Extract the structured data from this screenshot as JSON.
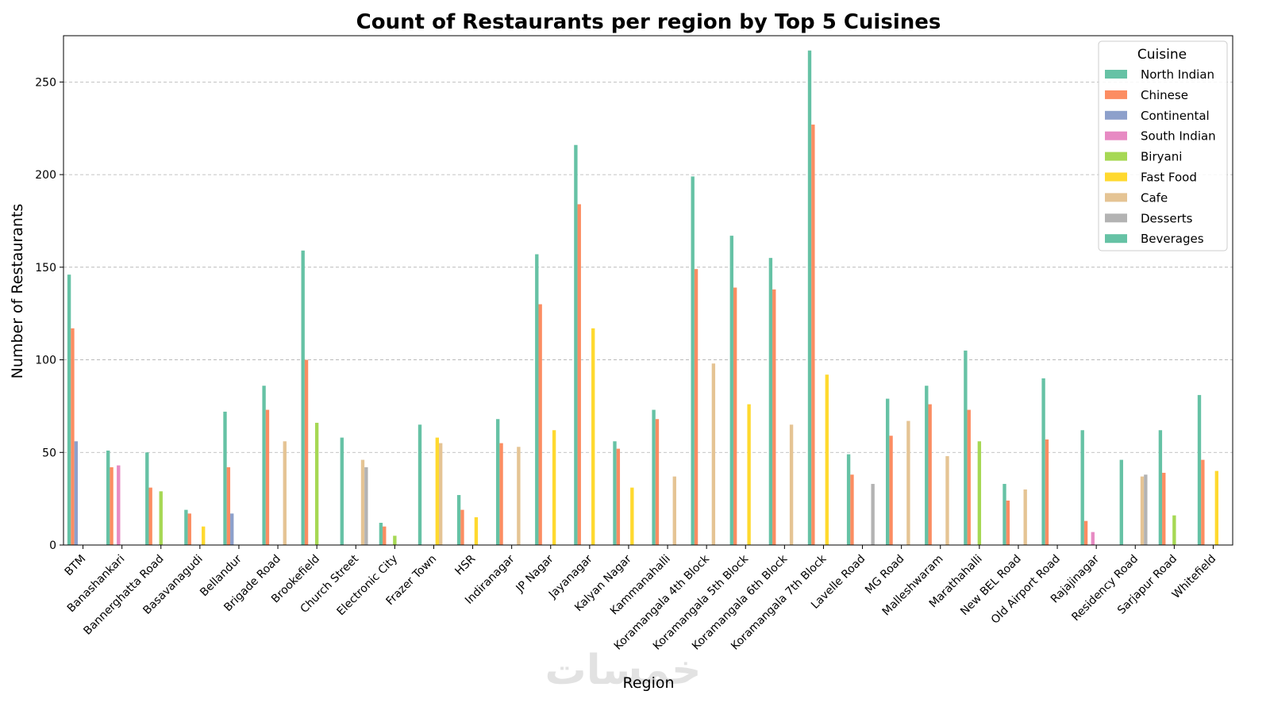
{
  "chart_data": {
    "type": "bar",
    "title": "Count of Restaurants per region by Top 5 Cuisines",
    "xlabel": "Region",
    "ylabel": "Number of Restaurants",
    "ylim": [
      0,
      275
    ],
    "yticks": [
      0,
      50,
      100,
      150,
      200,
      250
    ],
    "grid": "y-dashed",
    "legend_title": "Cuisine",
    "legend_position": "top-right",
    "watermark": "خمسات",
    "categories": [
      "BTM",
      "Banashankari",
      "Bannerghatta Road",
      "Basavanagudi",
      "Bellandur",
      "Brigade Road",
      "Brookefield",
      "Church Street",
      "Electronic City",
      "Frazer Town",
      "HSR",
      "Indiranagar",
      "JP Nagar",
      "Jayanagar",
      "Kalyan Nagar",
      "Kammanahalli",
      "Koramangala 4th Block",
      "Koramangala 5th Block",
      "Koramangala 6th Block",
      "Koramangala 7th Block",
      "Lavelle Road",
      "MG Road",
      "Malleshwaram",
      "Marathahalli",
      "New BEL Road",
      "Old Airport Road",
      "Rajajinagar",
      "Residency Road",
      "Sarjapur Road",
      "Whitefield"
    ],
    "series": [
      {
        "name": "North Indian",
        "color": "#66c2a5",
        "values": [
          146,
          51,
          50,
          19,
          72,
          86,
          159,
          58,
          12,
          65,
          27,
          68,
          157,
          216,
          56,
          73,
          199,
          167,
          155,
          267,
          49,
          79,
          86,
          105,
          33,
          90,
          62,
          46,
          62,
          81
        ]
      },
      {
        "name": "Chinese",
        "color": "#fc8d62",
        "values": [
          117,
          42,
          31,
          17,
          42,
          73,
          100,
          0,
          10,
          0,
          19,
          55,
          130,
          184,
          52,
          68,
          149,
          139,
          138,
          227,
          38,
          59,
          76,
          73,
          24,
          57,
          13,
          0,
          39,
          46
        ]
      },
      {
        "name": "Continental",
        "color": "#8da0cb",
        "values": [
          56,
          0,
          0,
          0,
          17,
          0,
          0,
          0,
          0,
          0,
          0,
          0,
          0,
          0,
          0,
          0,
          0,
          0,
          0,
          0,
          0,
          0,
          0,
          0,
          0,
          0,
          0,
          0,
          0,
          0
        ]
      },
      {
        "name": "South Indian",
        "color": "#e78ac3",
        "values": [
          0,
          43,
          0,
          0,
          0,
          0,
          0,
          0,
          0,
          0,
          0,
          0,
          0,
          0,
          0,
          0,
          0,
          0,
          0,
          0,
          0,
          0,
          0,
          0,
          0,
          0,
          7,
          0,
          0,
          0
        ]
      },
      {
        "name": "Biryani",
        "color": "#a6d854",
        "values": [
          0,
          0,
          29,
          0,
          0,
          0,
          66,
          0,
          5,
          0,
          0,
          0,
          0,
          0,
          0,
          0,
          0,
          0,
          0,
          0,
          0,
          0,
          0,
          56,
          0,
          0,
          0,
          0,
          16,
          0
        ]
      },
      {
        "name": "Fast Food",
        "color": "#ffd92f",
        "values": [
          0,
          0,
          0,
          10,
          0,
          0,
          0,
          0,
          0,
          58,
          15,
          0,
          62,
          117,
          31,
          0,
          0,
          76,
          0,
          92,
          0,
          0,
          0,
          0,
          0,
          0,
          0,
          0,
          0,
          40
        ]
      },
      {
        "name": "Cafe",
        "color": "#e5c494",
        "values": [
          0,
          0,
          0,
          0,
          0,
          56,
          0,
          46,
          0,
          55,
          0,
          53,
          0,
          0,
          0,
          37,
          98,
          0,
          65,
          0,
          0,
          67,
          48,
          0,
          30,
          0,
          0,
          37,
          0,
          0
        ]
      },
      {
        "name": "Desserts",
        "color": "#b3b3b3",
        "values": [
          0,
          0,
          0,
          0,
          0,
          0,
          0,
          42,
          0,
          0,
          0,
          0,
          0,
          0,
          0,
          0,
          0,
          0,
          0,
          0,
          33,
          0,
          0,
          0,
          0,
          0,
          0,
          38,
          0,
          0
        ]
      },
      {
        "name": "Beverages",
        "color": "#66c2a5",
        "values": [
          0,
          0,
          0,
          0,
          0,
          0,
          0,
          0,
          0,
          0,
          0,
          0,
          0,
          0,
          0,
          0,
          0,
          0,
          0,
          0,
          0,
          0,
          0,
          0,
          0,
          0,
          0,
          0,
          0,
          0
        ]
      }
    ]
  }
}
